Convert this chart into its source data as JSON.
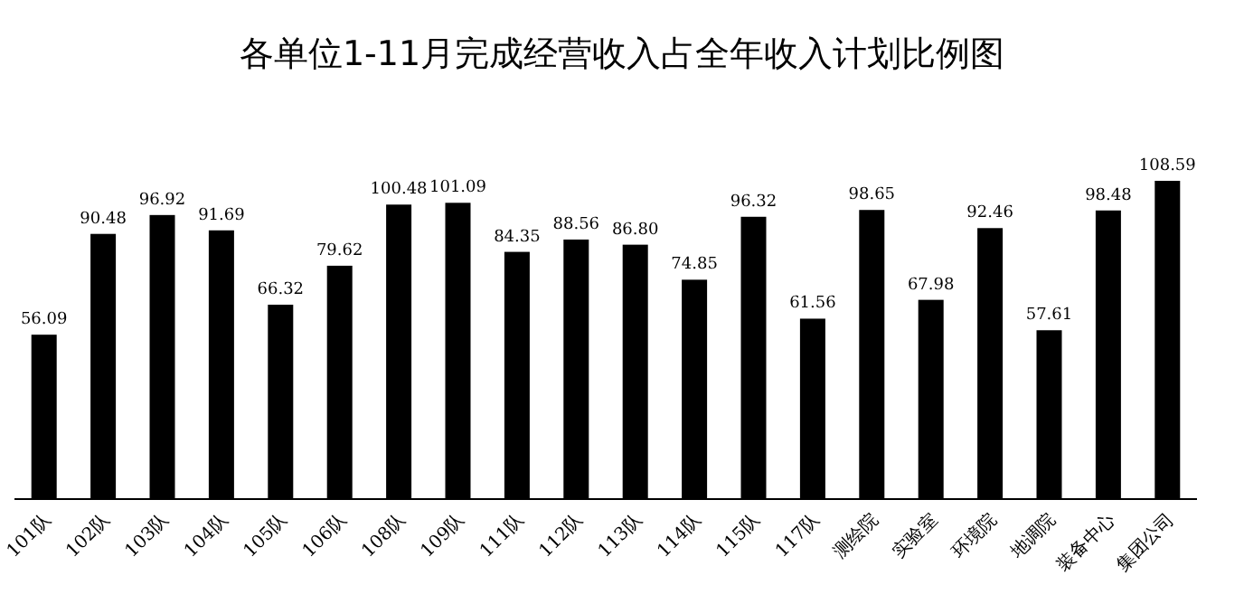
{
  "chart_data": {
    "type": "bar",
    "title": "各单位1-11月完成经营收入占全年收入计划比例图",
    "categories": [
      "101队",
      "102队",
      "103队",
      "104队",
      "105队",
      "106队",
      "108队",
      "109队",
      "111队",
      "112队",
      "113队",
      "114队",
      "115队",
      "117队",
      "测绘院",
      "实验室",
      "环境院",
      "地调院",
      "装备中心",
      "集团公司"
    ],
    "values": [
      56.09,
      90.48,
      96.92,
      91.69,
      66.32,
      79.62,
      100.48,
      101.09,
      84.35,
      88.56,
      86.8,
      74.85,
      96.32,
      61.56,
      98.65,
      67.98,
      92.46,
      57.61,
      98.48,
      108.59
    ],
    "value_labels": [
      "56.09",
      "90.48",
      "96.92",
      "91.69",
      "66.32",
      "79.62",
      "100.48",
      "101.09",
      "84.35",
      "88.56",
      "86.80",
      "74.85",
      "96.32",
      "61.56",
      "98.65",
      "67.98",
      "92.46",
      "57.61",
      "98.48",
      "108.59"
    ],
    "color": "#000000"
  }
}
